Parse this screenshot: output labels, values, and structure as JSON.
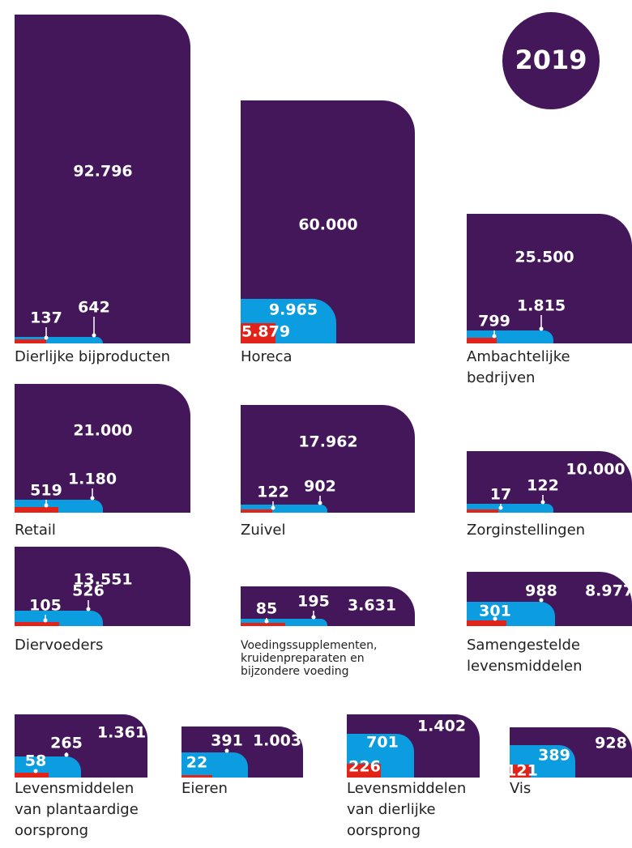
{
  "year": "2019",
  "panels": [
    {
      "caption": [
        "Dierlijke bijproducten"
      ],
      "total": "92.796",
      "middle": "642",
      "small": "137"
    },
    {
      "caption": [
        "Horeca"
      ],
      "total": "60.000",
      "middle": "9.965",
      "small": "5.879"
    },
    {
      "caption": [
        "Ambachtelijke",
        "bedrijven"
      ],
      "total": "25.500",
      "middle": "1.815",
      "small": "799"
    },
    {
      "caption": [
        "Retail"
      ],
      "total": "21.000",
      "middle": "1.180",
      "small": "519"
    },
    {
      "caption": [
        "Zuivel"
      ],
      "total": "17.962",
      "middle": "902",
      "small": "122"
    },
    {
      "caption": [
        "Zorginstellingen"
      ],
      "total": "10.000",
      "middle": "122",
      "small": "17"
    },
    {
      "caption": [
        "Diervoeders"
      ],
      "total": "13.551",
      "middle": "526",
      "small": "105"
    },
    {
      "caption": [
        "Voedingssupplementen,",
        "kruidenpreparaten en",
        "bijzondere voeding"
      ],
      "total": "3.631",
      "middle": "195",
      "small": "85"
    },
    {
      "caption": [
        "Samengestelde",
        "levensmiddelen"
      ],
      "total": "8.977",
      "middle": "988",
      "small": "301"
    },
    {
      "caption": [
        "Levensmiddelen",
        "van plantaardige",
        "oorsprong"
      ],
      "total": "1.361",
      "middle": "265",
      "small": "58"
    },
    {
      "caption": [
        "Eieren"
      ],
      "total": "1.003",
      "middle": "391",
      "small": "22"
    },
    {
      "caption": [
        "Levensmiddelen",
        "van dierlijke",
        "oorsprong"
      ],
      "total": "1.402",
      "middle": "701",
      "small": "226"
    },
    {
      "caption": [
        "Vis"
      ],
      "total": "928",
      "middle": "389",
      "small": "121"
    }
  ]
}
